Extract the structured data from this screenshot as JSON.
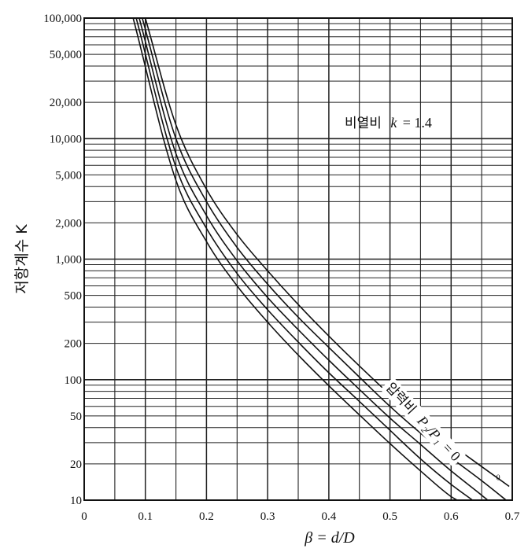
{
  "chart_data": {
    "type": "line",
    "xlabel": "β = d/D",
    "ylabel": "저항계수 K",
    "x_scale": "linear",
    "y_scale": "log",
    "xlim": [
      0,
      0.7
    ],
    "ylim": [
      10,
      100000
    ],
    "x_ticks": [
      "0",
      "0.1",
      "0.2",
      "0.3",
      "0.4",
      "0.5",
      "0.6",
      "0.7"
    ],
    "y_ticks": [
      "10",
      "20",
      "50",
      "100",
      "200",
      "500",
      "1,000",
      "2,000",
      "5,000",
      "10,000",
      "20,000",
      "50,000",
      "100,000"
    ],
    "grid": true,
    "annotations": {
      "specific_heat": {
        "text": "비열비",
        "var": "k",
        "value": "= 1.4"
      },
      "pressure_ratio": {
        "text": "압력비",
        "var": "P₂/P₁",
        "value": "= 0"
      }
    },
    "series": [
      {
        "name": "0",
        "x": [
          0.1,
          0.15,
          0.2,
          0.25,
          0.3,
          0.35,
          0.4,
          0.45,
          0.5,
          0.55,
          0.6,
          0.65,
          0.695
        ],
        "y": [
          100000,
          13000,
          3800,
          1600,
          800,
          420,
          230,
          130,
          75,
          45,
          29,
          19,
          13
        ]
      },
      {
        "name": "",
        "x": [
          0.095,
          0.15,
          0.2,
          0.25,
          0.3,
          0.35,
          0.4,
          0.45,
          0.5,
          0.55,
          0.6,
          0.65,
          0.69
        ],
        "y": [
          100000,
          10000,
          3000,
          1250,
          620,
          330,
          185,
          105,
          60,
          36,
          22.5,
          14.5,
          10
        ]
      },
      {
        "name": "",
        "x": [
          0.09,
          0.15,
          0.2,
          0.25,
          0.3,
          0.35,
          0.4,
          0.45,
          0.5,
          0.55,
          0.6,
          0.65,
          0.66
        ],
        "y": [
          100000,
          7500,
          2300,
          970,
          480,
          260,
          145,
          83,
          48,
          29,
          17.5,
          11,
          10
        ]
      },
      {
        "name": "",
        "x": [
          0.085,
          0.15,
          0.2,
          0.25,
          0.3,
          0.35,
          0.4,
          0.45,
          0.5,
          0.55,
          0.6,
          0.635
        ],
        "y": [
          100000,
          5800,
          1800,
          760,
          380,
          205,
          114,
          66,
          38,
          22,
          13.5,
          10
        ]
      },
      {
        "name": "",
        "x": [
          0.08,
          0.15,
          0.2,
          0.25,
          0.3,
          0.35,
          0.4,
          0.45,
          0.5,
          0.55,
          0.6,
          0.61
        ],
        "y": [
          100000,
          4500,
          1400,
          600,
          300,
          160,
          89,
          51,
          29.5,
          17.5,
          10.7,
          10
        ]
      }
    ]
  }
}
